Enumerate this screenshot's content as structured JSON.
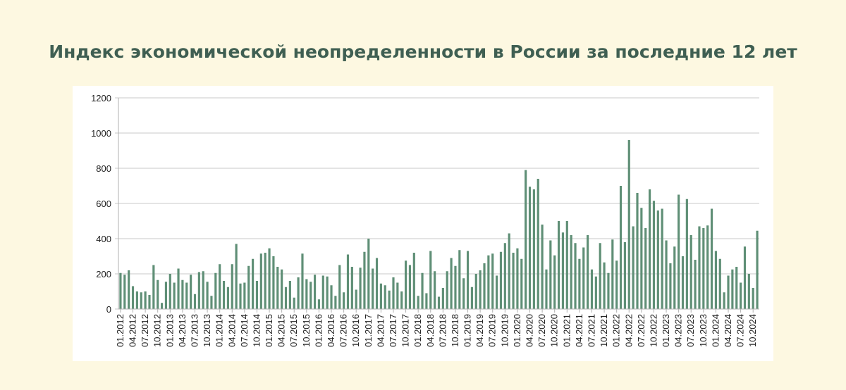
{
  "chart_data": {
    "type": "bar",
    "title": "Индекс экономической неопределенности в России за последние 12 лет",
    "categories": [
      "01.2012",
      null,
      null,
      "04.2012",
      null,
      null,
      "07.2012",
      null,
      null,
      "10.2012",
      null,
      null,
      "01.2013",
      null,
      null,
      "04.2013",
      null,
      null,
      "07.2013",
      null,
      null,
      "10.2013",
      null,
      null,
      "01.2014",
      null,
      null,
      "04.2014",
      null,
      null,
      "07.2014",
      null,
      null,
      "10.2014",
      null,
      null,
      "01.2015",
      null,
      null,
      "04.2015",
      null,
      null,
      "07.2015",
      null,
      null,
      "10.2015",
      null,
      null,
      "01.2016",
      null,
      null,
      "04.2016",
      null,
      null,
      "07.2016",
      null,
      null,
      "10.2016",
      null,
      null,
      "01.2017",
      null,
      null,
      "04.2017",
      null,
      null,
      "07.2017",
      null,
      null,
      "10.2017",
      null,
      null,
      "01.2018",
      null,
      null,
      "04.2018",
      null,
      null,
      "07.2018",
      null,
      null,
      "10.2018",
      null,
      null,
      "01.2019",
      null,
      null,
      "04.2019",
      null,
      null,
      "07.2019",
      null,
      null,
      "10.2019",
      null,
      null,
      "01.2020",
      null,
      null,
      "04.2020",
      null,
      null,
      "07.2020",
      null,
      null,
      "10.2020",
      null,
      null,
      "01.2021",
      null,
      null,
      "04.2021",
      null,
      null,
      "07.2021",
      null,
      null,
      "10.2021",
      null,
      null,
      "01.2022",
      null,
      null,
      "04.2022",
      null,
      null,
      "07.2022",
      null,
      null,
      "10.2022",
      null,
      null,
      "01.2023",
      null,
      null,
      "04.2023",
      null,
      null,
      "07.2023",
      null,
      null,
      "10.2023",
      null,
      null,
      "01.2024",
      null,
      null,
      "04.2024",
      null,
      null,
      "07.2024",
      null,
      null,
      "10.2024",
      null
    ],
    "values": [
      205,
      195,
      220,
      130,
      100,
      95,
      100,
      80,
      250,
      165,
      35,
      155,
      200,
      150,
      230,
      165,
      150,
      195,
      85,
      210,
      215,
      155,
      75,
      205,
      255,
      160,
      125,
      255,
      370,
      145,
      150,
      245,
      285,
      160,
      315,
      320,
      345,
      300,
      240,
      225,
      125,
      160,
      65,
      180,
      315,
      170,
      155,
      195,
      55,
      190,
      185,
      135,
      75,
      250,
      95,
      310,
      240,
      110,
      235,
      325,
      400,
      230,
      290,
      145,
      135,
      105,
      180,
      150,
      100,
      275,
      250,
      320,
      75,
      205,
      90,
      330,
      215,
      70,
      120,
      215,
      290,
      245,
      335,
      175,
      330,
      125,
      200,
      220,
      260,
      305,
      315,
      190,
      325,
      375,
      430,
      320,
      345,
      285,
      790,
      695,
      680,
      740,
      480,
      225,
      390,
      305,
      500,
      435,
      500,
      420,
      375,
      285,
      350,
      420,
      225,
      185,
      375,
      265,
      205,
      395,
      275,
      700,
      380,
      960,
      470,
      660,
      575,
      460,
      680,
      615,
      560,
      570,
      390,
      260,
      355,
      650,
      300,
      625,
      420,
      280,
      470,
      460,
      475,
      570,
      330,
      285,
      95,
      190,
      225,
      240,
      150,
      355,
      200,
      120,
      445
    ],
    "color": "#5f8f76",
    "ylim": [
      0,
      1200
    ],
    "yticks": [
      0,
      200,
      400,
      600,
      800,
      1000,
      1200
    ],
    "grid": true
  }
}
